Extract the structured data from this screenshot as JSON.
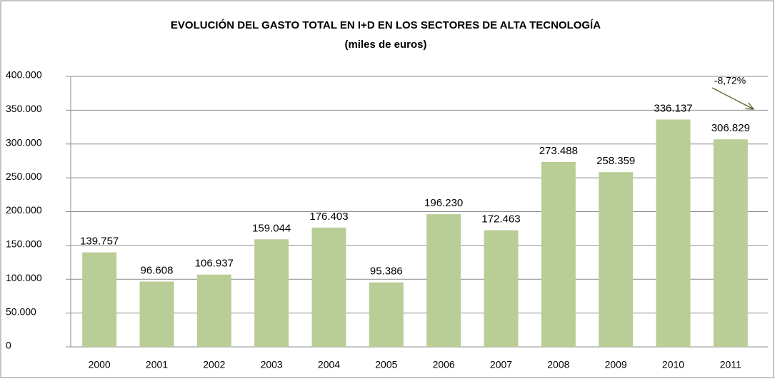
{
  "chart_data": {
    "type": "bar",
    "title": "EVOLUCIÓN DEL GASTO TOTAL EN I+D EN LOS SECTORES DE ALTA TECNOLOGÍA",
    "subtitle": "(miles de euros)",
    "categories": [
      "2000",
      "2001",
      "2002",
      "2003",
      "2004",
      "2005",
      "2006",
      "2007",
      "2008",
      "2009",
      "2010",
      "2011"
    ],
    "values": [
      139757,
      96608,
      106937,
      159044,
      176403,
      95386,
      196230,
      172463,
      273488,
      258359,
      336137,
      306829
    ],
    "value_labels": [
      "139.757",
      "96.608",
      "106.937",
      "159.044",
      "176.403",
      "95.386",
      "196.230",
      "172.463",
      "273.488",
      "258.359",
      "336.137",
      "306.829"
    ],
    "color": "#b9cd96",
    "ylim": [
      0,
      400000
    ],
    "yticks": [
      0,
      {
        "value": 50000,
        "label": "50.000"
      },
      {
        "value": 100000,
        "label": "100.000"
      },
      {
        "value": 150000,
        "label": "150.000"
      },
      {
        "value": 200000,
        "label": "200.000"
      },
      {
        "value": 250000,
        "label": "250.000"
      },
      {
        "value": 300000,
        "label": "300.000"
      },
      {
        "value": 350000,
        "label": "350.000"
      },
      {
        "value": 400000,
        "label": "400.000"
      }
    ],
    "grid": true,
    "annotations": [
      "-8,72%"
    ]
  }
}
